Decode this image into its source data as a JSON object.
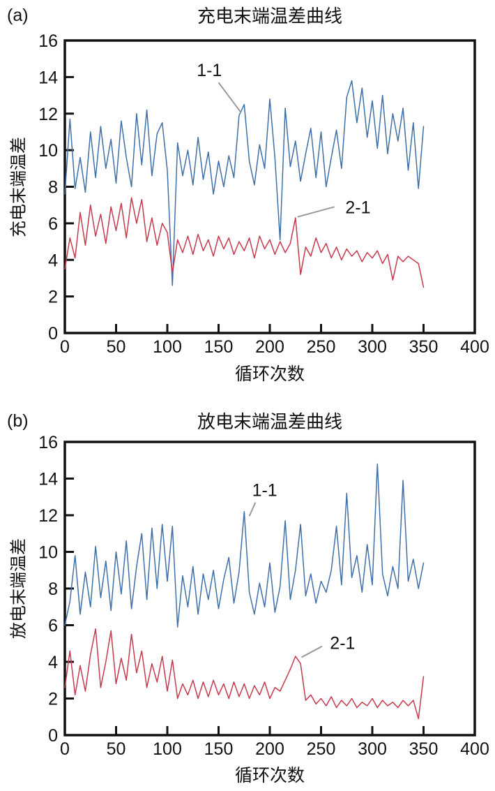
{
  "page": {
    "background": "#ffffff"
  },
  "colors": {
    "axis": "#111111",
    "series_1_1": "#3f6fa8",
    "series_2_1": "#c53a4c",
    "leader_line": "#9a9a9a"
  },
  "chart_data": [
    {
      "type": "line",
      "panel_label": "(a)",
      "title": "充电末端温差曲线",
      "xlabel": "循环次数",
      "ylabel": "充电末端温差",
      "xlim": [
        0,
        400
      ],
      "ylim": [
        0,
        16
      ],
      "xticks": [
        0,
        50,
        100,
        150,
        200,
        250,
        300,
        350,
        400
      ],
      "yticks": [
        0,
        2,
        4,
        6,
        8,
        10,
        12,
        14,
        16
      ],
      "grid": false,
      "legend": "inline-annotations",
      "x": [
        0,
        5,
        10,
        15,
        20,
        25,
        30,
        35,
        40,
        45,
        50,
        55,
        60,
        65,
        70,
        75,
        80,
        85,
        90,
        95,
        100,
        105,
        110,
        115,
        120,
        125,
        130,
        135,
        140,
        145,
        150,
        155,
        160,
        165,
        170,
        175,
        180,
        185,
        190,
        195,
        200,
        205,
        210,
        215,
        220,
        225,
        230,
        235,
        240,
        245,
        250,
        255,
        260,
        265,
        270,
        275,
        280,
        285,
        290,
        295,
        300,
        305,
        310,
        315,
        320,
        325,
        330,
        335,
        340,
        345,
        350
      ],
      "series": [
        {
          "name": "1-1",
          "color": "#3f6fa8",
          "values": [
            7.6,
            11.7,
            7.9,
            9.6,
            7.7,
            11.0,
            8.5,
            11.3,
            9.0,
            10.6,
            8.2,
            11.6,
            9.6,
            8.0,
            12.0,
            9.2,
            12.2,
            8.6,
            10.9,
            11.5,
            8.9,
            2.6,
            10.4,
            8.6,
            10.0,
            8.1,
            10.7,
            8.4,
            9.9,
            7.6,
            9.4,
            8.0,
            9.7,
            8.5,
            11.9,
            12.5,
            9.4,
            8.1,
            10.3,
            9.0,
            12.8,
            9.6,
            5.1,
            12.3,
            9.1,
            10.5,
            8.3,
            9.8,
            11.2,
            8.5,
            11.0,
            8.0,
            9.6,
            11.1,
            9.0,
            12.9,
            13.8,
            11.5,
            13.4,
            10.7,
            12.7,
            10.1,
            13.0,
            9.8,
            12.0,
            10.5,
            12.3,
            8.9,
            11.5,
            7.9,
            11.3
          ]
        },
        {
          "name": "2-1",
          "color": "#c53a4c",
          "values": [
            3.5,
            5.2,
            4.1,
            6.6,
            4.8,
            7.0,
            5.3,
            6.5,
            4.9,
            6.9,
            5.6,
            7.1,
            5.2,
            7.4,
            6.0,
            7.3,
            5.0,
            6.3,
            4.8,
            6.0,
            5.5,
            3.3,
            5.1,
            4.4,
            5.3,
            4.3,
            5.4,
            4.5,
            5.1,
            4.2,
            5.3,
            4.6,
            5.2,
            4.3,
            5.0,
            4.5,
            5.2,
            4.1,
            5.3,
            4.6,
            5.1,
            4.3,
            5.0,
            4.4,
            4.9,
            6.3,
            3.2,
            4.7,
            4.2,
            5.2,
            4.4,
            4.9,
            4.1,
            4.7,
            4.0,
            4.6,
            4.2,
            4.5,
            3.9,
            4.4,
            4.1,
            4.5,
            3.8,
            4.3,
            2.9,
            4.2,
            3.9,
            4.2,
            4.0,
            3.8,
            2.5
          ]
        }
      ],
      "annotations": [
        {
          "text": "1-1",
          "label_x": 141,
          "label_y": 14.4,
          "leader": [
            [
              150,
              13.7
            ],
            [
              172,
              12.05
            ]
          ]
        },
        {
          "text": "2-1",
          "label_x": 286,
          "label_y": 6.9,
          "leader": [
            [
              263,
              6.9
            ],
            [
              227,
              6.35
            ]
          ]
        }
      ]
    },
    {
      "type": "line",
      "panel_label": "(b)",
      "title": "放电末端温差曲线",
      "xlabel": "循环次数",
      "ylabel": "放电末端温差",
      "xlim": [
        0,
        400
      ],
      "ylim": [
        0,
        16
      ],
      "xticks": [
        0,
        50,
        100,
        150,
        200,
        250,
        300,
        350,
        400
      ],
      "yticks": [
        0,
        2,
        4,
        6,
        8,
        10,
        12,
        14,
        16
      ],
      "grid": false,
      "legend": "inline-annotations",
      "x": [
        0,
        5,
        10,
        15,
        20,
        25,
        30,
        35,
        40,
        45,
        50,
        55,
        60,
        65,
        70,
        75,
        80,
        85,
        90,
        95,
        100,
        105,
        110,
        115,
        120,
        125,
        130,
        135,
        140,
        145,
        150,
        155,
        160,
        165,
        170,
        175,
        180,
        185,
        190,
        195,
        200,
        205,
        210,
        215,
        220,
        225,
        230,
        235,
        240,
        245,
        250,
        255,
        260,
        265,
        270,
        275,
        280,
        285,
        290,
        295,
        300,
        305,
        310,
        315,
        320,
        325,
        330,
        335,
        340,
        345,
        350
      ],
      "series": [
        {
          "name": "1-1",
          "color": "#3f6fa8",
          "values": [
            6.0,
            7.3,
            9.8,
            6.6,
            8.9,
            7.0,
            10.3,
            7.5,
            9.5,
            6.8,
            10.0,
            7.7,
            10.6,
            6.9,
            9.2,
            11.0,
            7.4,
            11.3,
            8.0,
            11.5,
            8.4,
            11.4,
            5.9,
            8.7,
            7.0,
            9.2,
            6.6,
            8.8,
            7.4,
            9.0,
            6.9,
            8.5,
            9.7,
            7.2,
            8.9,
            12.2,
            7.8,
            6.6,
            8.3,
            7.0,
            9.4,
            6.7,
            8.1,
            11.7,
            7.4,
            9.0,
            11.5,
            7.6,
            8.8,
            7.2,
            8.4,
            7.8,
            9.0,
            11.4,
            8.2,
            13.2,
            8.6,
            9.8,
            7.8,
            10.4,
            8.2,
            14.8,
            8.8,
            7.6,
            9.2,
            8.0,
            13.9,
            8.4,
            9.6,
            8.0,
            9.4
          ]
        },
        {
          "name": "2-1",
          "color": "#c53a4c",
          "values": [
            2.6,
            4.6,
            2.2,
            3.8,
            2.4,
            4.4,
            5.8,
            2.6,
            4.0,
            5.7,
            2.8,
            4.2,
            3.0,
            5.5,
            3.4,
            4.6,
            2.6,
            3.9,
            2.9,
            4.3,
            2.4,
            4.1,
            2.0,
            2.8,
            2.2,
            3.0,
            2.0,
            2.9,
            2.1,
            3.0,
            2.2,
            2.8,
            2.0,
            2.9,
            2.1,
            2.8,
            2.0,
            2.7,
            2.2,
            2.9,
            2.0,
            2.6,
            2.4,
            3.0,
            3.6,
            4.3,
            3.9,
            1.9,
            2.2,
            1.7,
            2.0,
            1.6,
            2.1,
            1.5,
            1.9,
            1.6,
            2.0,
            1.5,
            1.8,
            1.6,
            2.0,
            1.5,
            1.9,
            1.6,
            1.8,
            1.5,
            1.9,
            1.6,
            1.9,
            0.9,
            3.2
          ]
        }
      ],
      "annotations": [
        {
          "text": "1-1",
          "label_x": 195,
          "label_y": 13.4,
          "leader": [
            [
              186,
              12.7
            ],
            [
              180,
              11.95
            ]
          ]
        },
        {
          "text": "2-1",
          "label_x": 271,
          "label_y": 5.05,
          "leader": [
            [
              251,
              4.85
            ],
            [
              231,
              4.25
            ]
          ]
        }
      ]
    }
  ]
}
